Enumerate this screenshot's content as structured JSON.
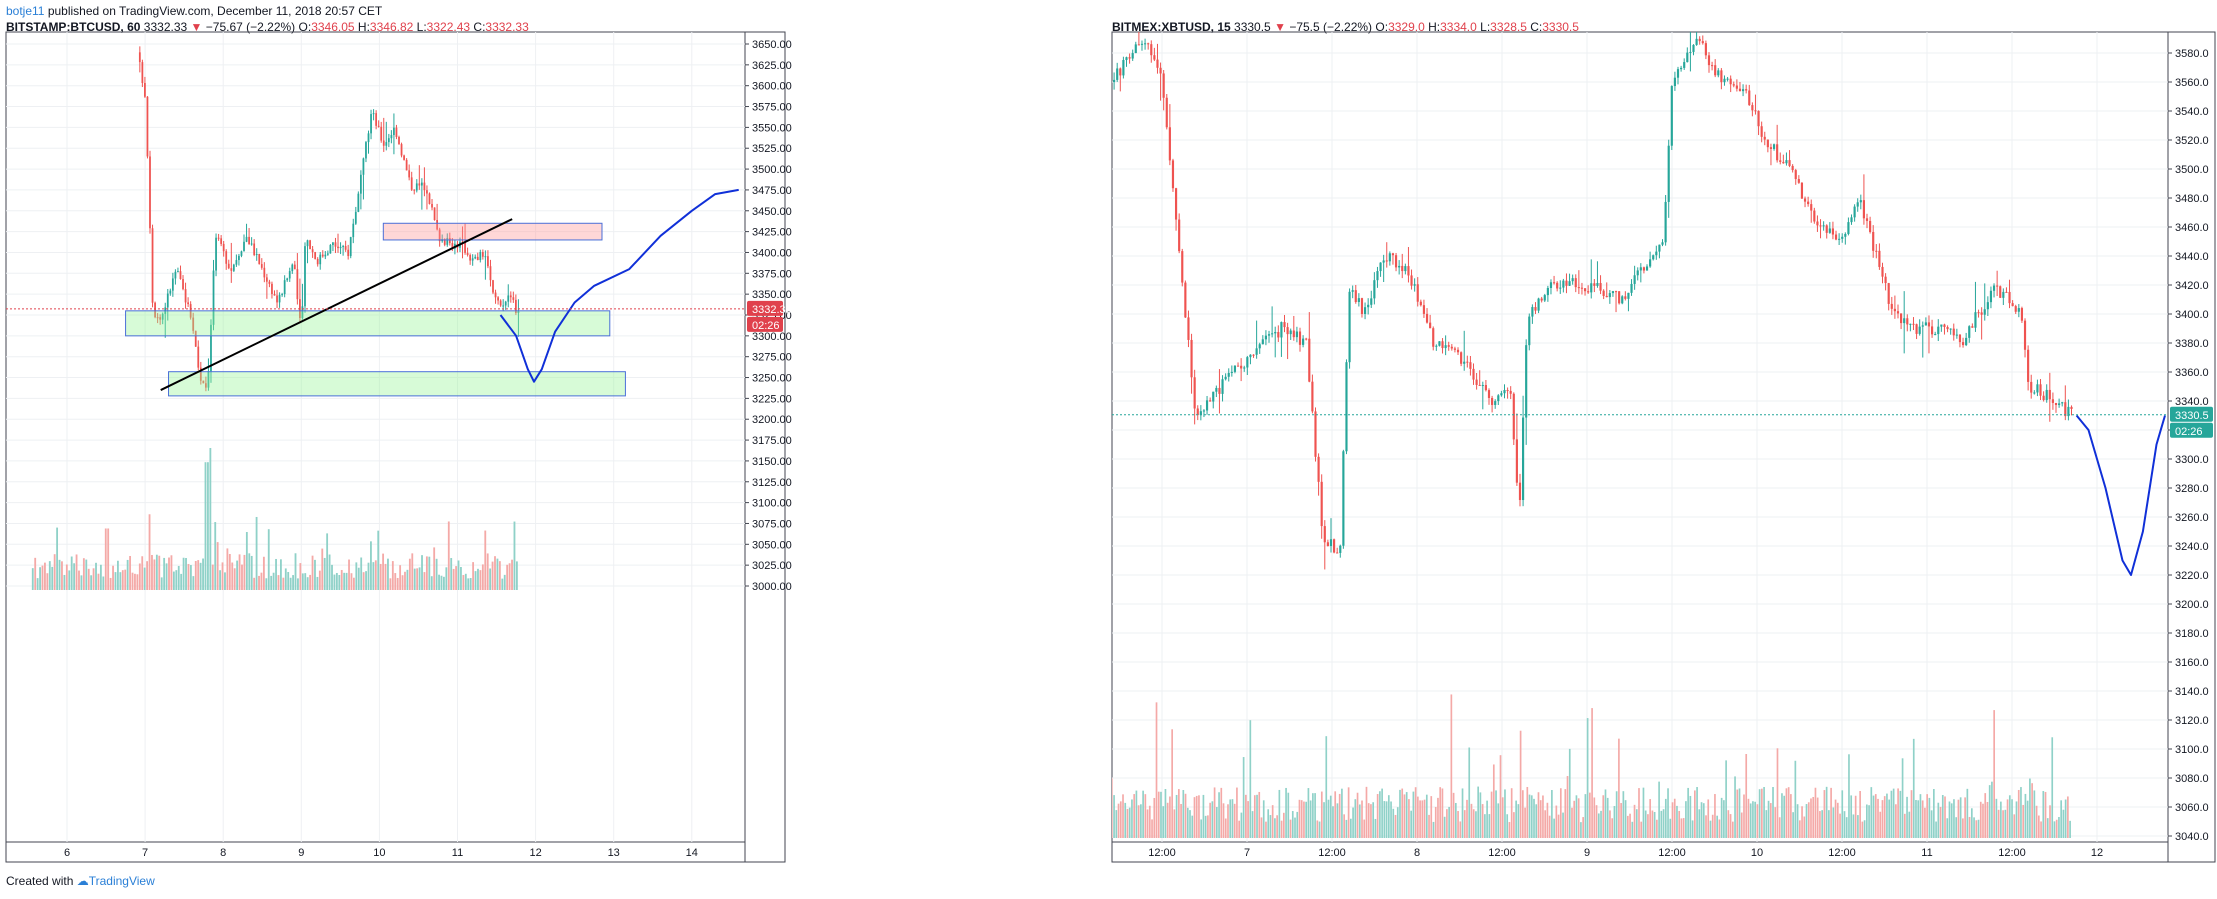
{
  "header": {
    "user": "botje11",
    "published_text": " published on TradingView.com, December 11, 2018 20:57 CET"
  },
  "footer": {
    "created_with": "Created with",
    "brand": "TradingView"
  },
  "colors": {
    "up": "#26a69a",
    "down": "#ef5350",
    "up_light": "#8fd1c8",
    "down_light": "#f4a9a7",
    "grid": "#eef0f3"
  },
  "left_panel": {
    "symbol": "BITSTAMP:BTCUSD, 60",
    "last": "3332.33",
    "change": "−75.67 (−2.22%)",
    "o_label": "O:",
    "o": "3346.05",
    "h_label": "H:",
    "h": "3346.82",
    "l_label": "L:",
    "l": "3322.43",
    "c_label": "C:",
    "c": "3332.33",
    "price_tag": "3332.33",
    "timer": "02:26",
    "x_labels": [
      "6",
      "7",
      "8",
      "9",
      "10",
      "11",
      "12",
      "13",
      "14"
    ],
    "y_labels": [
      "3650.00",
      "3625.00",
      "3600.00",
      "3575.00",
      "3550.00",
      "3525.00",
      "3500.00",
      "3475.00",
      "3450.00",
      "3425.00",
      "3400.00",
      "3375.00",
      "3350.00",
      "3325.00",
      "3300.00",
      "3275.00",
      "3250.00",
      "3225.00",
      "3200.00",
      "3175.00",
      "3150.00",
      "3125.00",
      "3100.00",
      "3075.00",
      "3050.00",
      "3025.00",
      "3000.00"
    ]
  },
  "right_panel": {
    "symbol": "BITMEX:XBTUSD, 15",
    "last": "3330.5",
    "change": "−75.5 (−2.22%)",
    "o_label": "O:",
    "o": "3329.0",
    "h_label": "H:",
    "h": "3334.0",
    "l_label": "L:",
    "l": "3328.5",
    "c_label": "C:",
    "c": "3330.5",
    "price_tag": "3330.5",
    "timer": "02:26",
    "x_labels": [
      "12:00",
      "7",
      "12:00",
      "8",
      "12:00",
      "9",
      "12:00",
      "10",
      "12:00",
      "11",
      "12:00",
      "12"
    ],
    "y_labels": [
      "3580.0",
      "3560.0",
      "3540.0",
      "3520.0",
      "3500.0",
      "3480.0",
      "3460.0",
      "3440.0",
      "3420.0",
      "3400.0",
      "3380.0",
      "3360.0",
      "3340.0",
      "3320.0",
      "3300.0",
      "3280.0",
      "3260.0",
      "3240.0",
      "3220.0",
      "3200.0",
      "3180.0",
      "3160.0",
      "3140.0",
      "3120.0",
      "3100.0",
      "3080.0",
      "3060.0",
      "3040.0"
    ]
  },
  "chart_data": [
    {
      "type": "candlestick",
      "symbol": "BITSTAMP:BTCUSD",
      "interval": "60",
      "x_axis": "day of month (Dec 2018)",
      "ylim": [
        3200,
        3650
      ],
      "close_path": [
        [
          6.9,
          3640
        ],
        [
          7.0,
          3590
        ],
        [
          7.05,
          3470
        ],
        [
          7.1,
          3330
        ],
        [
          7.2,
          3320
        ],
        [
          7.4,
          3380
        ],
        [
          7.6,
          3320
        ],
        [
          7.7,
          3250
        ],
        [
          7.8,
          3240
        ],
        [
          7.85,
          3330
        ],
        [
          7.9,
          3420
        ],
        [
          8.1,
          3380
        ],
        [
          8.3,
          3420
        ],
        [
          8.5,
          3380
        ],
        [
          8.7,
          3340
        ],
        [
          8.9,
          3390
        ],
        [
          9.0,
          3300
        ],
        [
          9.05,
          3420
        ],
        [
          9.2,
          3390
        ],
        [
          9.4,
          3410
        ],
        [
          9.6,
          3400
        ],
        [
          9.75,
          3480
        ],
        [
          9.9,
          3570
        ],
        [
          10.05,
          3530
        ],
        [
          10.2,
          3550
        ],
        [
          10.4,
          3480
        ],
        [
          10.6,
          3480
        ],
        [
          10.75,
          3420
        ],
        [
          10.9,
          3410
        ],
        [
          11.05,
          3410
        ],
        [
          11.2,
          3390
        ],
        [
          11.35,
          3400
        ],
        [
          11.45,
          3350
        ],
        [
          11.55,
          3340
        ],
        [
          11.7,
          3345
        ],
        [
          11.75,
          3332
        ]
      ],
      "projection_path": [
        [
          11.55,
          3325
        ],
        [
          11.75,
          3300
        ],
        [
          11.9,
          3260
        ],
        [
          11.98,
          3245
        ],
        [
          12.08,
          3260
        ],
        [
          12.25,
          3305
        ],
        [
          12.5,
          3340
        ],
        [
          12.75,
          3360
        ],
        [
          13.2,
          3380
        ],
        [
          13.6,
          3420
        ],
        [
          14.0,
          3450
        ],
        [
          14.3,
          3470
        ],
        [
          14.6,
          3475
        ]
      ],
      "trendline": {
        "from": [
          7.2,
          3235
        ],
        "to": [
          11.7,
          3440
        ]
      },
      "zones": [
        {
          "kind": "resistance",
          "x": [
            10.05,
            12.85
          ],
          "y": [
            3415,
            3435
          ]
        },
        {
          "kind": "support",
          "x": [
            6.75,
            12.95
          ],
          "y": [
            3300,
            3330
          ]
        },
        {
          "kind": "support",
          "x": [
            7.3,
            13.15
          ],
          "y": [
            3228,
            3257
          ]
        }
      ],
      "volume_peaks": [
        [
          7.82,
          3
        ],
        [
          7.78,
          2.7
        ],
        [
          7.05,
          1.6
        ],
        [
          6.5,
          1.3
        ],
        [
          10.7,
          0.9
        ],
        [
          11.45,
          0.6
        ]
      ]
    },
    {
      "type": "candlestick",
      "symbol": "BITMEX:XBTUSD",
      "interval": "15",
      "x_axis": "day of month (Dec 2018)",
      "ylim": [
        3190,
        3590
      ],
      "close_path": [
        [
          6.2,
          3560
        ],
        [
          6.4,
          3590
        ],
        [
          6.5,
          3560
        ],
        [
          6.6,
          3440
        ],
        [
          6.7,
          3330
        ],
        [
          6.85,
          3350
        ],
        [
          7.0,
          3370
        ],
        [
          7.2,
          3390
        ],
        [
          7.35,
          3380
        ],
        [
          7.45,
          3240
        ],
        [
          7.55,
          3240
        ],
        [
          7.6,
          3420
        ],
        [
          7.7,
          3400
        ],
        [
          7.8,
          3440
        ],
        [
          7.95,
          3430
        ],
        [
          8.1,
          3380
        ],
        [
          8.25,
          3370
        ],
        [
          8.45,
          3340
        ],
        [
          8.55,
          3350
        ],
        [
          8.6,
          3260
        ],
        [
          8.65,
          3400
        ],
        [
          8.8,
          3420
        ],
        [
          9.0,
          3420
        ],
        [
          9.2,
          3410
        ],
        [
          9.45,
          3450
        ],
        [
          9.5,
          3560
        ],
        [
          9.65,
          3590
        ],
        [
          9.8,
          3560
        ],
        [
          9.95,
          3550
        ],
        [
          10.05,
          3520
        ],
        [
          10.2,
          3500
        ],
        [
          10.35,
          3460
        ],
        [
          10.5,
          3450
        ],
        [
          10.6,
          3480
        ],
        [
          10.7,
          3440
        ],
        [
          10.8,
          3400
        ],
        [
          10.95,
          3390
        ],
        [
          11.1,
          3390
        ],
        [
          11.2,
          3380
        ],
        [
          11.4,
          3420
        ],
        [
          11.55,
          3400
        ],
        [
          11.6,
          3350
        ],
        [
          11.75,
          3340
        ],
        [
          11.85,
          3330
        ]
      ],
      "projection_path": [
        [
          11.88,
          3330
        ],
        [
          11.95,
          3320
        ],
        [
          12.05,
          3280
        ],
        [
          12.15,
          3230
        ],
        [
          12.2,
          3220
        ],
        [
          12.27,
          3250
        ],
        [
          12.35,
          3310
        ],
        [
          12.4,
          3330
        ]
      ]
    }
  ]
}
